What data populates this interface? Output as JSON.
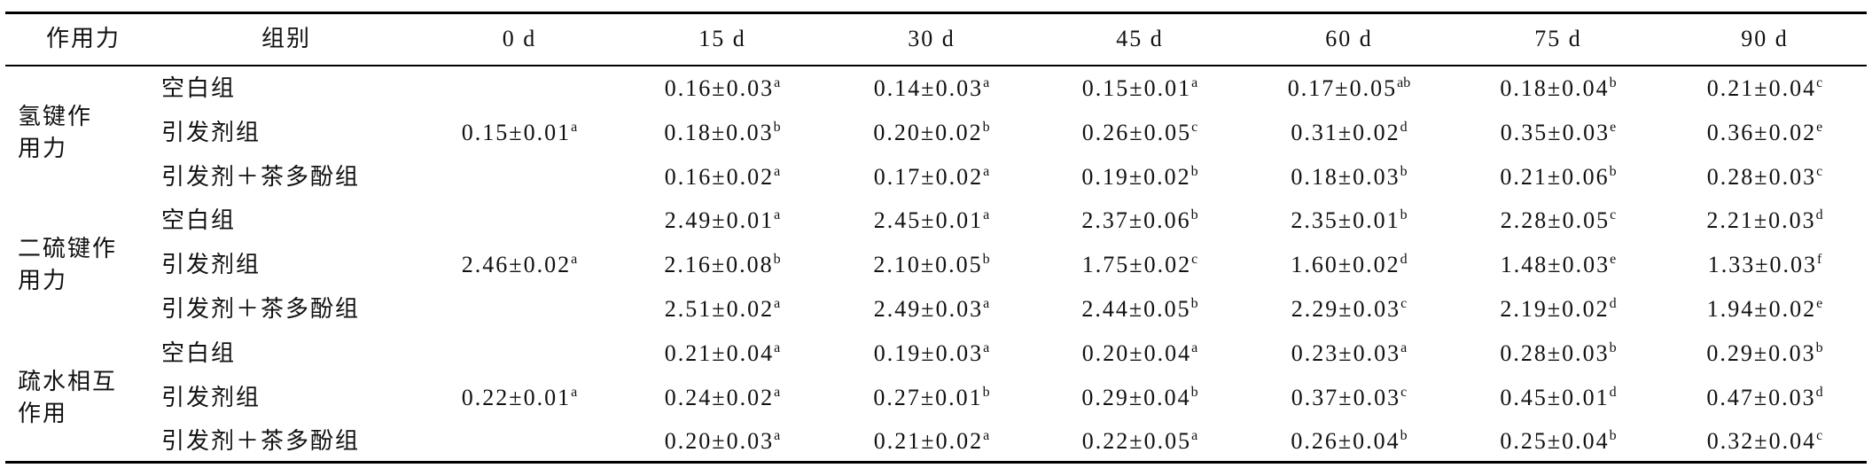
{
  "table": {
    "headers": [
      "作用力",
      "组别",
      "0 d",
      "15 d",
      "30 d",
      "45 d",
      "60 d",
      "75 d",
      "90 d"
    ],
    "groups": [
      {
        "label": [
          "氢键作",
          "用力"
        ],
        "day0": {
          "value": "0.15±0.01",
          "sup": "a"
        },
        "rows": [
          {
            "name": "空白组",
            "cells": [
              {
                "value": "0.16±0.03",
                "sup": "a"
              },
              {
                "value": "0.14±0.03",
                "sup": "a"
              },
              {
                "value": "0.15±0.01",
                "sup": "a"
              },
              {
                "value": "0.17±0.05",
                "sup": "ab"
              },
              {
                "value": "0.18±0.04",
                "sup": "b"
              },
              {
                "value": "0.21±0.04",
                "sup": "c"
              }
            ]
          },
          {
            "name": "引发剂组",
            "cells": [
              {
                "value": "0.18±0.03",
                "sup": "b"
              },
              {
                "value": "0.20±0.02",
                "sup": "b"
              },
              {
                "value": "0.26±0.05",
                "sup": "c"
              },
              {
                "value": "0.31±0.02",
                "sup": "d"
              },
              {
                "value": "0.35±0.03",
                "sup": "e"
              },
              {
                "value": "0.36±0.02",
                "sup": "e"
              }
            ]
          },
          {
            "name": "引发剂＋茶多酚组",
            "cells": [
              {
                "value": "0.16±0.02",
                "sup": "a"
              },
              {
                "value": "0.17±0.02",
                "sup": "a"
              },
              {
                "value": "0.19±0.02",
                "sup": "b"
              },
              {
                "value": "0.18±0.03",
                "sup": "b"
              },
              {
                "value": "0.21±0.06",
                "sup": "b"
              },
              {
                "value": "0.28±0.03",
                "sup": "c"
              }
            ]
          }
        ]
      },
      {
        "label": [
          "二硫键作",
          "用力"
        ],
        "day0": {
          "value": "2.46±0.02",
          "sup": "a"
        },
        "rows": [
          {
            "name": "空白组",
            "cells": [
              {
                "value": "2.49±0.01",
                "sup": "a"
              },
              {
                "value": "2.45±0.01",
                "sup": "a"
              },
              {
                "value": "2.37±0.06",
                "sup": "b"
              },
              {
                "value": "2.35±0.01",
                "sup": "b"
              },
              {
                "value": "2.28±0.05",
                "sup": "c"
              },
              {
                "value": "2.21±0.03",
                "sup": "d"
              }
            ]
          },
          {
            "name": "引发剂组",
            "cells": [
              {
                "value": "2.16±0.08",
                "sup": "b"
              },
              {
                "value": "2.10±0.05",
                "sup": "b"
              },
              {
                "value": "1.75±0.02",
                "sup": "c"
              },
              {
                "value": "1.60±0.02",
                "sup": "d"
              },
              {
                "value": "1.48±0.03",
                "sup": "e"
              },
              {
                "value": "1.33±0.03",
                "sup": "f"
              }
            ]
          },
          {
            "name": "引发剂＋茶多酚组",
            "cells": [
              {
                "value": "2.51±0.02",
                "sup": "a"
              },
              {
                "value": "2.49±0.03",
                "sup": "a"
              },
              {
                "value": "2.44±0.05",
                "sup": "b"
              },
              {
                "value": "2.29±0.03",
                "sup": "c"
              },
              {
                "value": "2.19±0.02",
                "sup": "d"
              },
              {
                "value": "1.94±0.02",
                "sup": "e"
              }
            ]
          }
        ]
      },
      {
        "label": [
          "疏水相互",
          "作用"
        ],
        "day0": {
          "value": "0.22±0.01",
          "sup": "a"
        },
        "rows": [
          {
            "name": "空白组",
            "cells": [
              {
                "value": "0.21±0.04",
                "sup": "a"
              },
              {
                "value": "0.19±0.03",
                "sup": "a"
              },
              {
                "value": "0.20±0.04",
                "sup": "a"
              },
              {
                "value": "0.23±0.03",
                "sup": "a"
              },
              {
                "value": "0.28±0.03",
                "sup": "b"
              },
              {
                "value": "0.29±0.03",
                "sup": "b"
              }
            ]
          },
          {
            "name": "引发剂组",
            "cells": [
              {
                "value": "0.24±0.02",
                "sup": "a"
              },
              {
                "value": "0.27±0.01",
                "sup": "b"
              },
              {
                "value": "0.29±0.04",
                "sup": "b"
              },
              {
                "value": "0.37±0.03",
                "sup": "c"
              },
              {
                "value": "0.45±0.01",
                "sup": "d"
              },
              {
                "value": "0.47±0.03",
                "sup": "d"
              }
            ]
          },
          {
            "name": "引发剂＋茶多酚组",
            "cells": [
              {
                "value": "0.20±0.03",
                "sup": "a"
              },
              {
                "value": "0.21±0.02",
                "sup": "a"
              },
              {
                "value": "0.22±0.05",
                "sup": "a"
              },
              {
                "value": "0.26±0.04",
                "sup": "b"
              },
              {
                "value": "0.25±0.04",
                "sup": "b"
              },
              {
                "value": "0.32±0.04",
                "sup": "c"
              }
            ]
          }
        ]
      }
    ]
  }
}
